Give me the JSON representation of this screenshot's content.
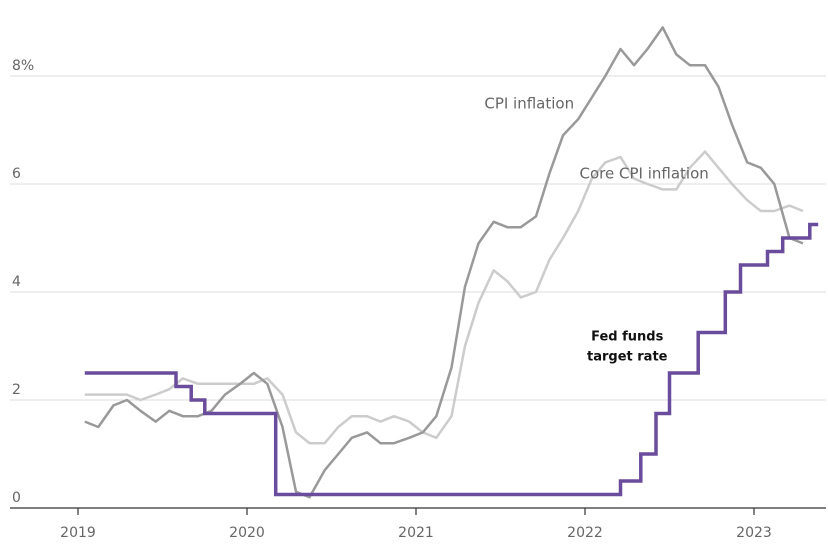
{
  "chart_data": {
    "type": "line",
    "title": "",
    "xlabel": "",
    "ylabel": "",
    "xlim": [
      2019.0,
      2023.47
    ],
    "ylim": [
      0,
      9.5
    ],
    "y_ticks": [
      {
        "value": 0,
        "label": "0"
      },
      {
        "value": 2,
        "label": "2"
      },
      {
        "value": 4,
        "label": "4"
      },
      {
        "value": 6,
        "label": "6"
      },
      {
        "value": 8,
        "label": "8%"
      }
    ],
    "x_ticks": [
      {
        "value": 2019,
        "label": "2019"
      },
      {
        "value": 2020,
        "label": "2020"
      },
      {
        "value": 2021,
        "label": "2021"
      },
      {
        "value": 2022,
        "label": "2022"
      },
      {
        "value": 2023,
        "label": "2023"
      }
    ],
    "grid": true,
    "legend": "none (direct labels)",
    "series": [
      {
        "name": "CPI inflation",
        "color": "#999999",
        "step": false,
        "points": [
          [
            2019.04,
            1.6
          ],
          [
            2019.12,
            1.5
          ],
          [
            2019.21,
            1.9
          ],
          [
            2019.29,
            2.0
          ],
          [
            2019.37,
            1.8
          ],
          [
            2019.46,
            1.6
          ],
          [
            2019.54,
            1.8
          ],
          [
            2019.62,
            1.7
          ],
          [
            2019.71,
            1.7
          ],
          [
            2019.79,
            1.8
          ],
          [
            2019.87,
            2.1
          ],
          [
            2019.96,
            2.3
          ],
          [
            2020.04,
            2.5
          ],
          [
            2020.12,
            2.3
          ],
          [
            2020.21,
            1.5
          ],
          [
            2020.29,
            0.3
          ],
          [
            2020.37,
            0.2
          ],
          [
            2020.46,
            0.7
          ],
          [
            2020.54,
            1.0
          ],
          [
            2020.62,
            1.3
          ],
          [
            2020.71,
            1.4
          ],
          [
            2020.79,
            1.2
          ],
          [
            2020.87,
            1.2
          ],
          [
            2020.96,
            1.3
          ],
          [
            2021.04,
            1.4
          ],
          [
            2021.12,
            1.7
          ],
          [
            2021.21,
            2.6
          ],
          [
            2021.29,
            4.1
          ],
          [
            2021.37,
            4.9
          ],
          [
            2021.46,
            5.3
          ],
          [
            2021.54,
            5.2
          ],
          [
            2021.62,
            5.2
          ],
          [
            2021.71,
            5.4
          ],
          [
            2021.79,
            6.2
          ],
          [
            2021.87,
            6.9
          ],
          [
            2021.96,
            7.2
          ],
          [
            2022.04,
            7.6
          ],
          [
            2022.12,
            8.0
          ],
          [
            2022.21,
            8.5
          ],
          [
            2022.29,
            8.2
          ],
          [
            2022.37,
            8.5
          ],
          [
            2022.46,
            8.9
          ],
          [
            2022.54,
            8.4
          ],
          [
            2022.62,
            8.2
          ],
          [
            2022.71,
            8.2
          ],
          [
            2022.79,
            7.8
          ],
          [
            2022.87,
            7.1
          ],
          [
            2022.96,
            6.4
          ],
          [
            2023.04,
            6.3
          ],
          [
            2023.12,
            6.0
          ],
          [
            2023.21,
            5.0
          ],
          [
            2023.29,
            4.9
          ]
        ]
      },
      {
        "name": "Core CPI inflation",
        "color": "#cccccc",
        "step": false,
        "points": [
          [
            2019.04,
            2.1
          ],
          [
            2019.12,
            2.1
          ],
          [
            2019.21,
            2.1
          ],
          [
            2019.29,
            2.1
          ],
          [
            2019.37,
            2.0
          ],
          [
            2019.46,
            2.1
          ],
          [
            2019.54,
            2.2
          ],
          [
            2019.62,
            2.4
          ],
          [
            2019.71,
            2.3
          ],
          [
            2019.79,
            2.3
          ],
          [
            2019.87,
            2.3
          ],
          [
            2019.96,
            2.3
          ],
          [
            2020.04,
            2.3
          ],
          [
            2020.12,
            2.4
          ],
          [
            2020.21,
            2.1
          ],
          [
            2020.29,
            1.4
          ],
          [
            2020.37,
            1.2
          ],
          [
            2020.46,
            1.2
          ],
          [
            2020.54,
            1.5
          ],
          [
            2020.62,
            1.7
          ],
          [
            2020.71,
            1.7
          ],
          [
            2020.79,
            1.6
          ],
          [
            2020.87,
            1.7
          ],
          [
            2020.96,
            1.6
          ],
          [
            2021.04,
            1.4
          ],
          [
            2021.12,
            1.3
          ],
          [
            2021.21,
            1.7
          ],
          [
            2021.29,
            3.0
          ],
          [
            2021.37,
            3.8
          ],
          [
            2021.46,
            4.4
          ],
          [
            2021.54,
            4.2
          ],
          [
            2021.62,
            3.9
          ],
          [
            2021.71,
            4.0
          ],
          [
            2021.79,
            4.6
          ],
          [
            2021.87,
            5.0
          ],
          [
            2021.96,
            5.5
          ],
          [
            2022.04,
            6.1
          ],
          [
            2022.12,
            6.4
          ],
          [
            2022.21,
            6.5
          ],
          [
            2022.29,
            6.1
          ],
          [
            2022.37,
            6.0
          ],
          [
            2022.46,
            5.9
          ],
          [
            2022.54,
            5.9
          ],
          [
            2022.62,
            6.3
          ],
          [
            2022.71,
            6.6
          ],
          [
            2022.79,
            6.3
          ],
          [
            2022.87,
            6.0
          ],
          [
            2022.96,
            5.7
          ],
          [
            2023.04,
            5.5
          ],
          [
            2023.12,
            5.5
          ],
          [
            2023.21,
            5.6
          ],
          [
            2023.29,
            5.5
          ]
        ]
      },
      {
        "name": "Fed funds target rate",
        "color": "#6a4c9c",
        "step": true,
        "points": [
          [
            2019.04,
            2.5
          ],
          [
            2019.58,
            2.25
          ],
          [
            2019.67,
            2.0
          ],
          [
            2019.75,
            1.75
          ],
          [
            2020.17,
            0.25
          ],
          [
            2022.21,
            0.5
          ],
          [
            2022.33,
            1.0
          ],
          [
            2022.42,
            1.75
          ],
          [
            2022.5,
            2.5
          ],
          [
            2022.67,
            3.25
          ],
          [
            2022.83,
            4.0
          ],
          [
            2022.92,
            4.5
          ],
          [
            2023.08,
            4.75
          ],
          [
            2023.17,
            5.0
          ],
          [
            2023.33,
            5.25
          ],
          [
            2023.38,
            5.25
          ]
        ]
      }
    ],
    "annotations": [
      {
        "series": "CPI inflation",
        "text": "CPI inflation",
        "x": 2021.67,
        "y": 7.4
      },
      {
        "series": "Core CPI inflation",
        "text": "Core CPI inflation",
        "x": 2022.35,
        "y": 6.1
      },
      {
        "series": "Fed funds target rate",
        "text_lines": [
          "Fed funds",
          "target rate"
        ],
        "x": 2022.25,
        "y": 3.1
      }
    ]
  }
}
